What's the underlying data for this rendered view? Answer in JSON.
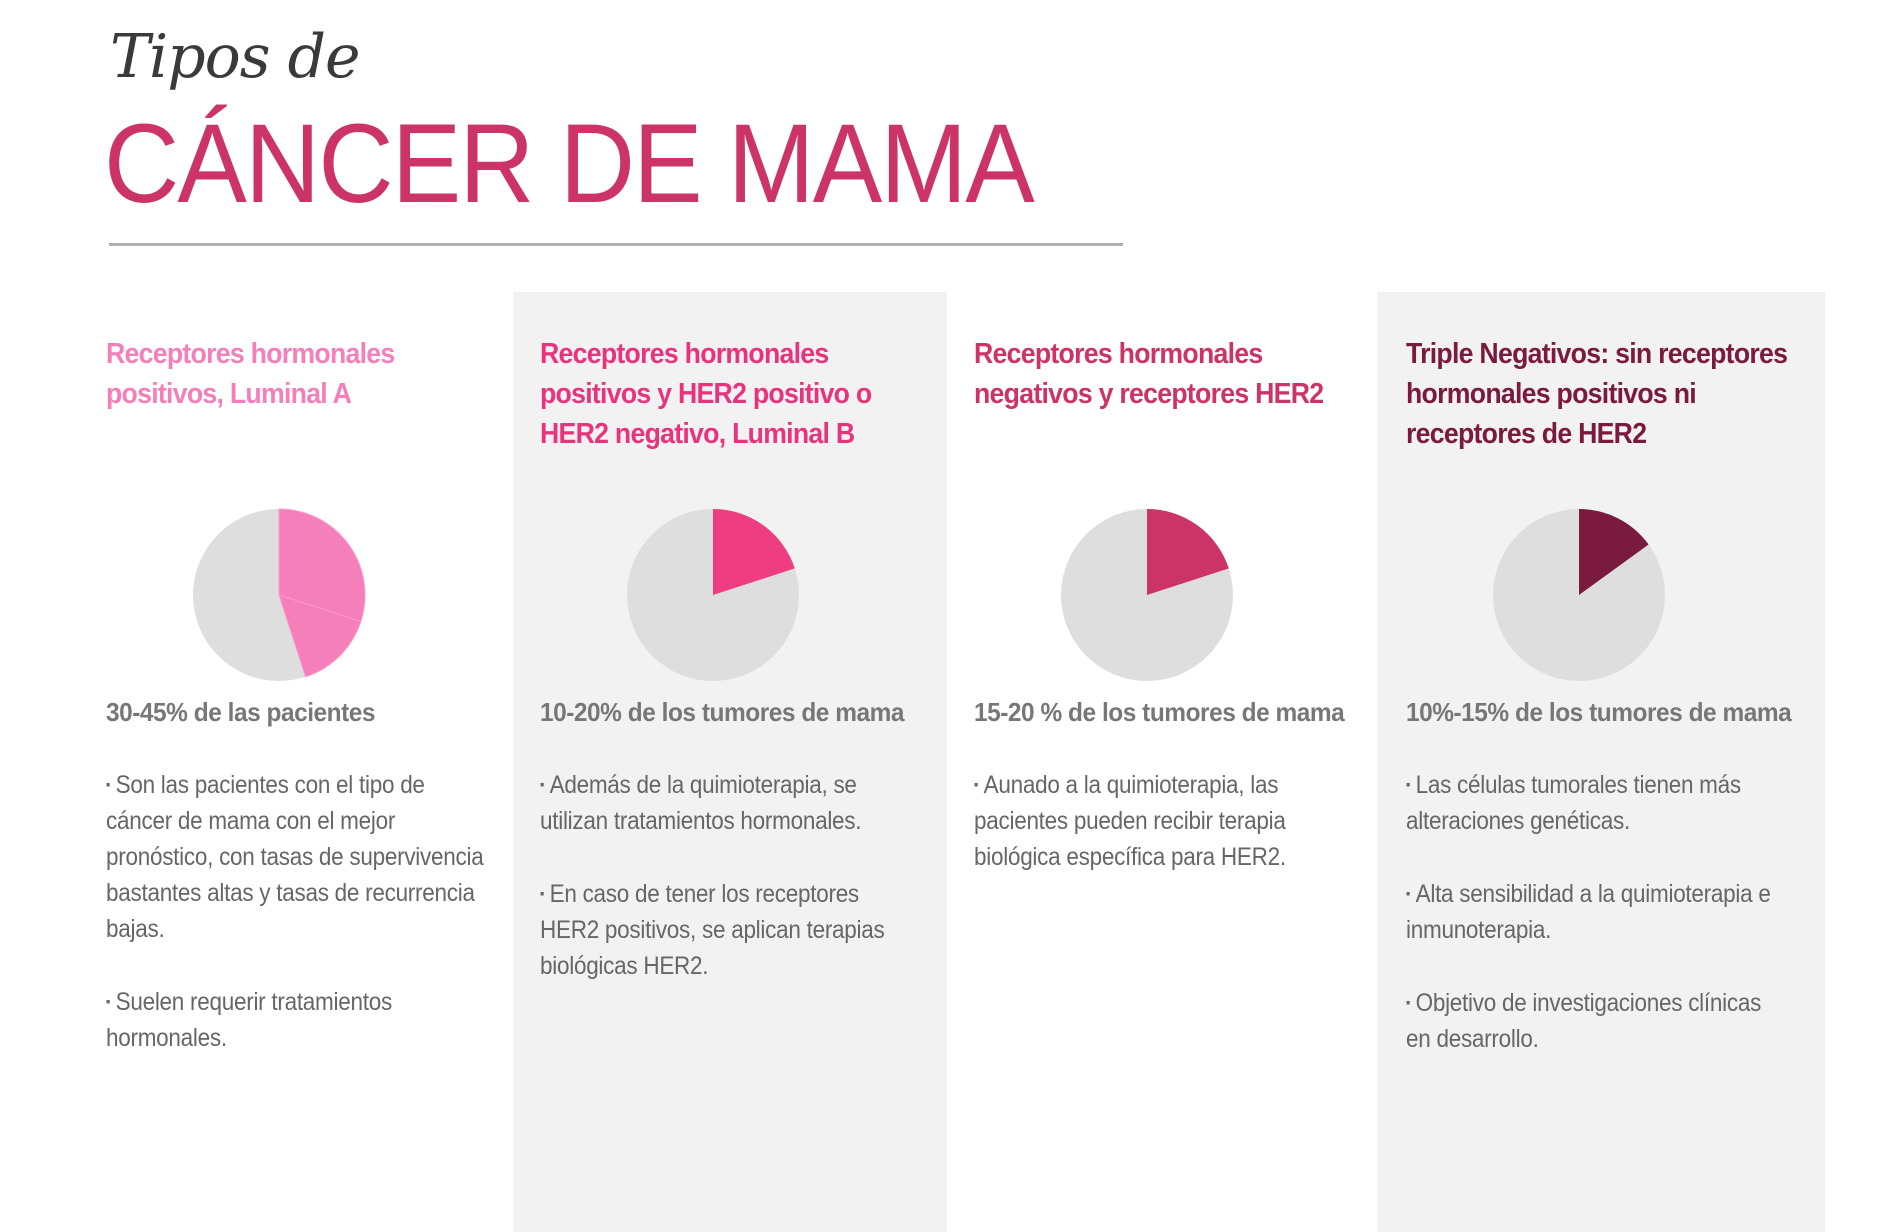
{
  "header": {
    "subtitle": "Tipos de",
    "title": "CÁNCER DE MAMA"
  },
  "columns": [
    {
      "heading": "Receptores hormonales positivos, Luminal A",
      "color": "#f47fba",
      "pie_color": "#f47fba",
      "pie_slices": [
        0.3,
        0.15
      ],
      "pct": "30-45% de las pacientes",
      "bullets": [
        "Son las pacientes con el tipo de cáncer de mama con el mejor pronóstico, con tasas de supervivencia bastantes altas y tasas de recurrencia bajas.",
        "Suelen requerir tratamientos hormonales."
      ]
    },
    {
      "heading": "Receptores hormonales positivos y HER2 positivo o HER2 negativo, Luminal B",
      "color": "#e8347c",
      "pie_color": "#ee3d80",
      "pie_slices": [
        0.2
      ],
      "pct": "10-20% de los tumores de mama",
      "bullets": [
        "Además de la quimioterapia, se utilizan tratamientos hormonales.",
        "En caso de tener los receptores HER2 positivos, se aplican terapias biológicas HER2."
      ]
    },
    {
      "heading": "Receptores hormonales negativos y receptores HER2",
      "color": "#cc3366",
      "pie_color": "#cc3366",
      "pie_slices": [
        0.2
      ],
      "pct": "15-20 % de los tumores de mama",
      "bullets": [
        "Aunado a la quimioterapia, las pacientes pueden recibir terapia biológica específica para HER2."
      ]
    },
    {
      "heading": "Triple Negativos: sin receptores hormonales positivos ni receptores de HER2",
      "color": "#7a1a3e",
      "pie_color": "#7a1a3e",
      "pie_slices": [
        0.15
      ],
      "pct": "10%-15% de los tumores de mama",
      "bullets": [
        "Las células tumorales tienen más alteraciones genéticas.",
        "Alta sensibilidad a la quimioterapia e inmunoterapia.",
        "Objetivo de investigaciones clínicas en desarrollo."
      ]
    }
  ],
  "bullet_symbol": "▪"
}
